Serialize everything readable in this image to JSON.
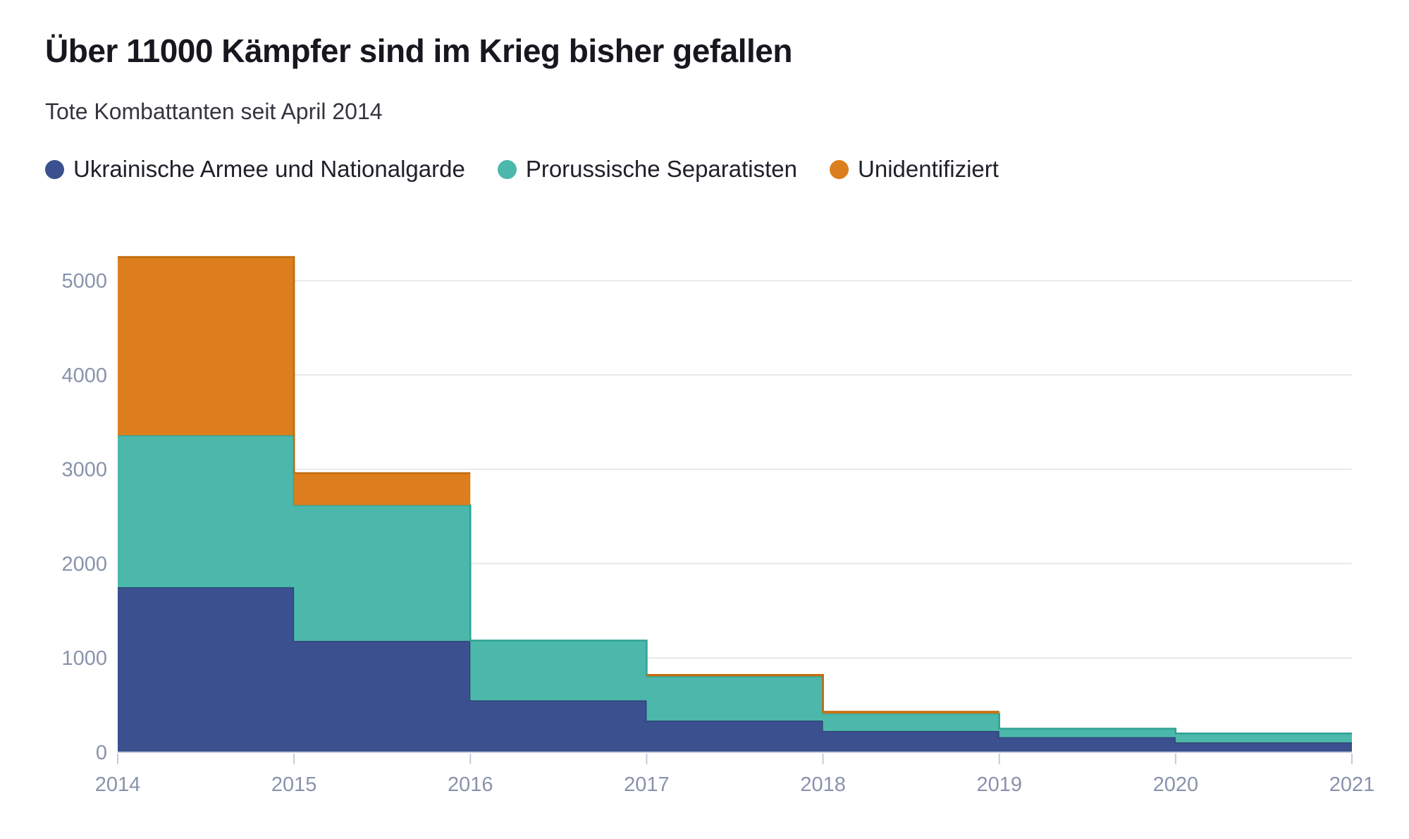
{
  "header": {
    "title": "Über 11000 Kämpfer sind im Krieg bisher gefallen",
    "subtitle": "Tote Kombattanten seit April 2014"
  },
  "colors": {
    "background": "#ffffff",
    "title_text": "#17171f",
    "subtitle_text": "#35353f",
    "legend_text": "#20202a",
    "axis_label": "#8893ab",
    "gridline": "#e2e2e8",
    "baseline": "#c4cbda",
    "tick_mark": "#c4cbda"
  },
  "chart_data": {
    "type": "area",
    "interpolation": "step-after",
    "stacked": true,
    "grid": "horizontal",
    "legend_position": "top",
    "x": [
      2014,
      2015,
      2016,
      2017,
      2018,
      2019,
      2020,
      2021
    ],
    "x_tick_labels": [
      "2014",
      "2015",
      "2016",
      "2017",
      "2018",
      "2019",
      "2020",
      "2021"
    ],
    "y_ticks": [
      0,
      1000,
      2000,
      3000,
      4000,
      5000
    ],
    "y_tick_labels": [
      "0",
      "1000",
      "2000",
      "3000",
      "4000",
      "5000"
    ],
    "ylim": [
      0,
      5250
    ],
    "series": [
      {
        "name": "Ukrainische Armee und Nationalgarde",
        "color": "#3A508F",
        "stroke": "#2C4070",
        "values": [
          1750,
          1180,
          550,
          335,
          225,
          160,
          105
        ]
      },
      {
        "name": "Prorussische Separatisten",
        "color": "#4BB8AB",
        "stroke": "#2EA295",
        "values": [
          1610,
          1440,
          635,
          470,
          185,
          90,
          95
        ]
      },
      {
        "name": "Unidentifiziert",
        "color": "#DC7E1D",
        "stroke": "#C06A0B",
        "values": [
          1890,
          340,
          0,
          15,
          20,
          0,
          0
        ]
      }
    ],
    "stack_totals": [
      5250,
      2960,
      1185,
      820,
      430,
      250,
      200
    ]
  }
}
